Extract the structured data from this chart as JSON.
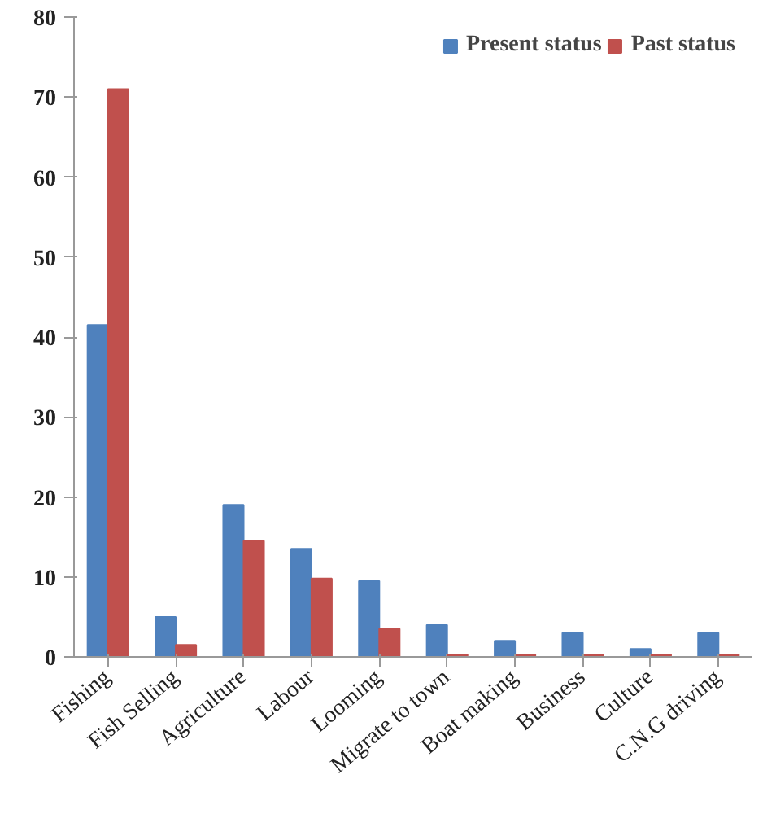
{
  "chart_data": {
    "type": "bar",
    "categories": [
      "Fishing",
      "Fish Selling",
      "Agriculture",
      "Labour",
      "Looming",
      "Migrate to town",
      "Boat making",
      "Business",
      "Culture",
      "C.N.G driving"
    ],
    "series": [
      {
        "name": "Present status",
        "color": "#4f81bd",
        "values": [
          41.5,
          5,
          19,
          13.5,
          9.5,
          4,
          2,
          3,
          1,
          3
        ]
      },
      {
        "name": "Past status",
        "color": "#c0504d",
        "values": [
          71,
          1.5,
          14.5,
          9.8,
          3.5,
          0.3,
          0.3,
          0.3,
          0.3,
          0.3
        ]
      }
    ],
    "ylim": [
      0,
      80
    ],
    "yticks": [
      0,
      10,
      20,
      30,
      40,
      50,
      60,
      70,
      80
    ],
    "grid": false,
    "legend": "top right"
  }
}
